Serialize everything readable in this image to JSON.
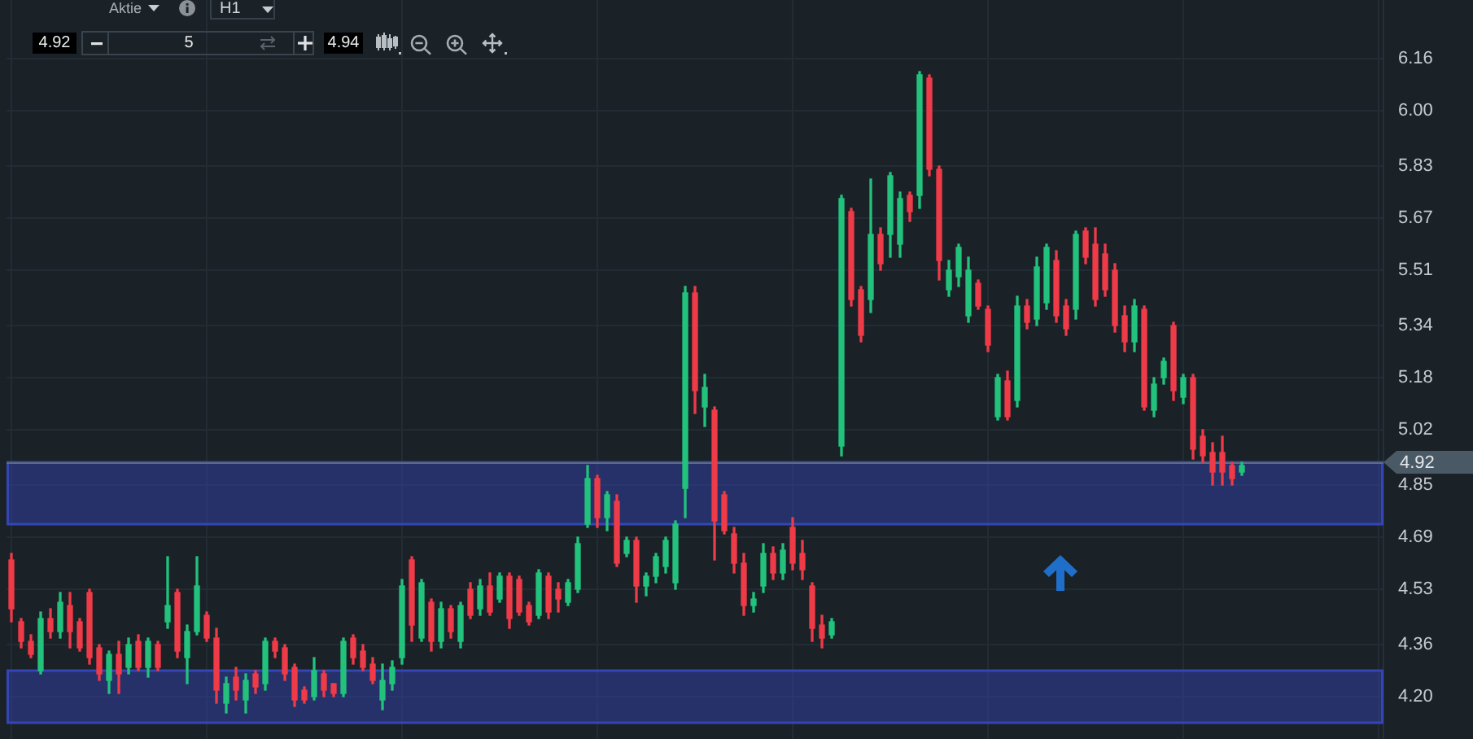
{
  "chart_data": {
    "type": "candlestick",
    "categories": [
      null,
      null,
      null,
      null,
      null,
      null,
      null,
      null,
      null,
      null,
      null,
      null,
      null,
      null,
      null,
      null,
      null,
      null,
      null,
      null,
      null,
      null,
      null,
      null,
      null,
      null,
      null,
      null,
      null,
      null,
      null,
      null,
      null,
      null,
      null,
      null,
      null,
      null,
      null,
      null,
      null,
      null,
      null,
      null,
      null,
      null,
      null,
      null,
      null,
      null,
      null,
      null,
      null,
      null,
      null,
      null,
      null,
      null,
      null,
      null,
      null,
      null,
      null,
      null,
      null,
      null,
      null,
      null,
      null,
      null,
      null,
      null,
      null,
      null,
      null,
      null,
      null,
      null,
      null,
      null,
      null,
      null,
      null,
      null,
      null,
      null,
      null,
      null,
      null,
      null,
      null,
      null,
      null,
      null,
      null,
      null,
      null,
      null,
      null,
      null,
      null,
      null,
      null,
      null,
      null,
      null,
      null,
      null,
      null,
      null,
      null,
      null,
      null,
      null,
      null,
      null,
      null,
      null,
      null,
      null,
      null,
      null,
      null,
      null,
      null,
      null,
      null,
      null,
      null,
      null,
      null,
      null,
      null,
      null,
      null,
      null,
      null,
      null,
      null,
      null,
      null
    ],
    "ohlc": [
      [
        4.62,
        4.64,
        4.43,
        4.47
      ],
      [
        4.43,
        4.44,
        4.35,
        4.37
      ],
      [
        4.37,
        4.39,
        4.32,
        4.33
      ],
      [
        4.28,
        4.46,
        4.27,
        4.44
      ],
      [
        4.44,
        4.47,
        4.38,
        4.4
      ],
      [
        4.4,
        4.52,
        4.38,
        4.49
      ],
      [
        4.48,
        4.52,
        4.35,
        4.4
      ],
      [
        4.43,
        4.44,
        4.34,
        4.35
      ],
      [
        4.52,
        4.53,
        4.3,
        4.32
      ],
      [
        4.35,
        4.36,
        4.25,
        4.27
      ],
      [
        4.25,
        4.34,
        4.21,
        4.33
      ],
      [
        4.33,
        4.37,
        4.21,
        4.27
      ],
      [
        4.29,
        4.38,
        4.27,
        4.36
      ],
      [
        4.37,
        4.39,
        4.28,
        4.29
      ],
      [
        4.29,
        4.38,
        4.26,
        4.37
      ],
      [
        4.36,
        4.37,
        4.28,
        4.29
      ],
      [
        4.43,
        4.63,
        4.41,
        4.48
      ],
      [
        4.52,
        4.53,
        4.32,
        4.34
      ],
      [
        4.32,
        4.42,
        4.24,
        4.4
      ],
      [
        4.4,
        4.63,
        4.39,
        4.54
      ],
      [
        4.45,
        4.46,
        4.37,
        4.38
      ],
      [
        4.38,
        4.41,
        4.18,
        4.22
      ],
      [
        4.18,
        4.26,
        4.15,
        4.24
      ],
      [
        4.26,
        4.29,
        4.19,
        4.22
      ],
      [
        4.19,
        4.27,
        4.15,
        4.25
      ],
      [
        4.27,
        4.28,
        4.21,
        4.23
      ],
      [
        4.24,
        4.38,
        4.22,
        4.37
      ],
      [
        4.37,
        4.38,
        4.32,
        4.34
      ],
      [
        4.35,
        4.36,
        4.25,
        4.27
      ],
      [
        4.29,
        4.3,
        4.17,
        4.19
      ],
      [
        4.22,
        4.23,
        4.18,
        4.19
      ],
      [
        4.2,
        4.32,
        4.19,
        4.28
      ],
      [
        4.27,
        4.28,
        4.2,
        4.22
      ],
      [
        4.24,
        4.24,
        4.2,
        4.21
      ],
      [
        4.21,
        4.38,
        4.2,
        4.37
      ],
      [
        4.38,
        4.39,
        4.3,
        4.32
      ],
      [
        4.34,
        4.36,
        4.28,
        4.29
      ],
      [
        4.3,
        4.32,
        4.24,
        4.25
      ],
      [
        4.19,
        4.3,
        4.16,
        4.25
      ],
      [
        4.24,
        4.31,
        4.22,
        4.29
      ],
      [
        4.32,
        4.56,
        4.3,
        4.54
      ],
      [
        4.62,
        4.63,
        4.37,
        4.42
      ],
      [
        4.38,
        4.56,
        4.37,
        4.55
      ],
      [
        4.49,
        4.5,
        4.34,
        4.37
      ],
      [
        4.37,
        4.49,
        4.35,
        4.47
      ],
      [
        4.47,
        4.48,
        4.38,
        4.4
      ],
      [
        4.37,
        4.49,
        4.35,
        4.48
      ],
      [
        4.53,
        4.55,
        4.44,
        4.45
      ],
      [
        4.47,
        4.56,
        4.45,
        4.54
      ],
      [
        4.54,
        4.58,
        4.45,
        4.46
      ],
      [
        4.5,
        4.58,
        4.49,
        4.57
      ],
      [
        4.57,
        4.58,
        4.41,
        4.44
      ],
      [
        4.56,
        4.57,
        4.45,
        4.46
      ],
      [
        4.48,
        4.49,
        4.42,
        4.43
      ],
      [
        4.45,
        4.59,
        4.44,
        4.58
      ],
      [
        4.57,
        4.58,
        4.44,
        4.46
      ],
      [
        4.53,
        4.55,
        4.46,
        4.5
      ],
      [
        4.49,
        4.56,
        4.48,
        4.55
      ],
      [
        4.53,
        4.69,
        4.52,
        4.67
      ],
      [
        4.73,
        4.91,
        4.72,
        4.87
      ],
      [
        4.87,
        4.88,
        4.72,
        4.75
      ],
      [
        4.75,
        4.83,
        4.71,
        4.82
      ],
      [
        4.8,
        4.82,
        4.6,
        4.61
      ],
      [
        4.64,
        4.69,
        4.63,
        4.68
      ],
      [
        4.68,
        4.69,
        4.49,
        4.54
      ],
      [
        4.54,
        4.58,
        4.51,
        4.57
      ],
      [
        4.57,
        4.64,
        4.55,
        4.63
      ],
      [
        4.6,
        4.69,
        4.58,
        4.68
      ],
      [
        4.55,
        4.74,
        4.53,
        4.73
      ],
      [
        4.84,
        5.46,
        4.75,
        5.44
      ],
      [
        5.44,
        5.46,
        5.07,
        5.14
      ],
      [
        5.09,
        5.19,
        5.03,
        5.15
      ],
      [
        5.08,
        5.09,
        4.62,
        4.74
      ],
      [
        4.82,
        4.83,
        4.7,
        4.71
      ],
      [
        4.7,
        4.72,
        4.58,
        4.61
      ],
      [
        4.61,
        4.64,
        4.45,
        4.48
      ],
      [
        4.48,
        4.52,
        4.46,
        4.5
      ],
      [
        4.54,
        4.67,
        4.52,
        4.64
      ],
      [
        4.64,
        4.66,
        4.56,
        4.58
      ],
      [
        4.58,
        4.67,
        4.56,
        4.65
      ],
      [
        4.72,
        4.75,
        4.59,
        4.61
      ],
      [
        4.64,
        4.68,
        4.56,
        4.59
      ],
      [
        4.54,
        4.55,
        4.37,
        4.41
      ],
      [
        4.42,
        4.45,
        4.35,
        4.38
      ],
      [
        4.39,
        4.44,
        4.38,
        4.43
      ],
      [
        4.97,
        5.74,
        4.94,
        5.73
      ],
      [
        5.69,
        5.7,
        5.4,
        5.42
      ],
      [
        5.45,
        5.46,
        5.29,
        5.31
      ],
      [
        5.42,
        5.79,
        5.38,
        5.62
      ],
      [
        5.62,
        5.64,
        5.51,
        5.53
      ],
      [
        5.62,
        5.81,
        5.55,
        5.8
      ],
      [
        5.59,
        5.75,
        5.55,
        5.73
      ],
      [
        5.74,
        5.75,
        5.66,
        5.69
      ],
      [
        5.74,
        6.12,
        5.7,
        6.11
      ],
      [
        6.1,
        6.11,
        5.8,
        5.82
      ],
      [
        5.82,
        5.83,
        5.48,
        5.54
      ],
      [
        5.45,
        5.54,
        5.43,
        5.51
      ],
      [
        5.49,
        5.59,
        5.46,
        5.58
      ],
      [
        5.37,
        5.55,
        5.35,
        5.51
      ],
      [
        5.47,
        5.48,
        5.39,
        5.4
      ],
      [
        5.39,
        5.4,
        5.26,
        5.28
      ],
      [
        5.06,
        5.19,
        5.05,
        5.18
      ],
      [
        5.17,
        5.2,
        5.05,
        5.06
      ],
      [
        5.11,
        5.43,
        5.09,
        5.4
      ],
      [
        5.4,
        5.42,
        5.33,
        5.35
      ],
      [
        5.36,
        5.55,
        5.34,
        5.52
      ],
      [
        5.41,
        5.59,
        5.39,
        5.58
      ],
      [
        5.54,
        5.57,
        5.35,
        5.37
      ],
      [
        5.4,
        5.42,
        5.31,
        5.33
      ],
      [
        5.39,
        5.63,
        5.36,
        5.62
      ],
      [
        5.63,
        5.64,
        5.53,
        5.55
      ],
      [
        5.59,
        5.64,
        5.4,
        5.42
      ],
      [
        5.56,
        5.59,
        5.43,
        5.45
      ],
      [
        5.51,
        5.53,
        5.32,
        5.34
      ],
      [
        5.37,
        5.4,
        5.26,
        5.29
      ],
      [
        5.29,
        5.42,
        5.26,
        5.4
      ],
      [
        5.39,
        5.4,
        5.08,
        5.09
      ],
      [
        5.08,
        5.18,
        5.06,
        5.16
      ],
      [
        5.18,
        5.24,
        5.16,
        5.23
      ],
      [
        5.34,
        5.35,
        5.11,
        5.14
      ],
      [
        5.12,
        5.19,
        5.1,
        5.18
      ],
      [
        5.18,
        5.19,
        4.93,
        4.96
      ],
      [
        5.0,
        5.02,
        4.92,
        4.94
      ],
      [
        4.95,
        4.98,
        4.85,
        4.89
      ],
      [
        4.95,
        5.0,
        4.85,
        4.89
      ],
      [
        4.91,
        4.92,
        4.85,
        4.87
      ],
      [
        4.89,
        4.92,
        4.88,
        4.91
      ],
      null,
      null,
      null,
      null,
      null,
      null,
      null,
      null,
      null,
      null,
      null,
      null,
      null,
      null
    ],
    "colors": [
      "#ef3a48",
      "#ef3a48",
      "#ef3a48",
      "#22c27d",
      "#ef3a48",
      "#22c27d",
      "#ef3a48",
      "#ef3a48",
      "#ef3a48",
      "#ef3a48",
      "#22c27d",
      "#ef3a48",
      "#22c27d",
      "#ef3a48",
      "#22c27d",
      "#ef3a48",
      "#22c27d",
      "#ef3a48",
      "#22c27d",
      "#22c27d",
      "#ef3a48",
      "#ef3a48",
      "#22c27d",
      "#ef3a48",
      "#22c27d",
      "#ef3a48",
      "#22c27d",
      "#ef3a48",
      "#ef3a48",
      "#ef3a48",
      "#ef3a48",
      "#22c27d",
      "#ef3a48",
      "#ef3a48",
      "#22c27d",
      "#ef3a48",
      "#ef3a48",
      "#ef3a48",
      "#22c27d",
      "#22c27d",
      "#22c27d",
      "#ef3a48",
      "#22c27d",
      "#ef3a48",
      "#22c27d",
      "#ef3a48",
      "#22c27d",
      "#ef3a48",
      "#22c27d",
      "#ef3a48",
      "#22c27d",
      "#ef3a48",
      "#ef3a48",
      "#ef3a48",
      "#22c27d",
      "#ef3a48",
      "#ef3a48",
      "#22c27d",
      "#22c27d",
      "#22c27d",
      "#ef3a48",
      "#22c27d",
      "#ef3a48",
      "#22c27d",
      "#ef3a48",
      "#22c27d",
      "#22c27d",
      "#22c27d",
      "#22c27d",
      "#22c27d",
      "#ef3a48",
      "#22c27d",
      "#ef3a48",
      "#ef3a48",
      "#ef3a48",
      "#ef3a48",
      "#22c27d",
      "#22c27d",
      "#ef3a48",
      "#22c27d",
      "#ef3a48",
      "#ef3a48",
      "#ef3a48",
      "#ef3a48",
      "#22c27d",
      "#22c27d",
      "#ef3a48",
      "#ef3a48",
      "#22c27d",
      "#ef3a48",
      "#22c27d",
      "#22c27d",
      "#ef3a48",
      "#22c27d",
      "#ef3a48",
      "#ef3a48",
      "#22c27d",
      "#22c27d",
      "#22c27d",
      "#ef3a48",
      "#ef3a48",
      "#22c27d",
      "#ef3a48",
      "#22c27d",
      "#ef3a48",
      "#22c27d",
      "#22c27d",
      "#ef3a48",
      "#ef3a48",
      "#22c27d",
      "#ef3a48",
      "#ef3a48",
      "#ef3a48",
      "#ef3a48",
      "#ef3a48",
      "#22c27d",
      "#ef3a48",
      "#22c27d",
      "#22c27d",
      "#ef3a48",
      "#22c27d",
      "#ef3a48",
      "#ef3a48",
      "#ef3a48",
      "#ef3a48",
      "#ef3a48",
      "#22c27d",
      null,
      null,
      null,
      null,
      null,
      null,
      null,
      null,
      null,
      null,
      null,
      null,
      null,
      null
    ],
    "ylim": [
      4.07,
      6.34
    ],
    "yticks": [
      {
        "value": 4.2,
        "label": "4.20"
      },
      4.36,
      4.53,
      4.69,
      4.85,
      5.02,
      5.18,
      5.34,
      5.51,
      5.67,
      5.83,
      {
        "value": 6.0,
        "label": "6.00"
      },
      6.16
    ],
    "tick_labels": "y",
    "grid": true,
    "bands": [
      {
        "axis": "y",
        "from": 4.73,
        "to": 4.92,
        "color": "#3445b5"
      },
      {
        "axis": "y",
        "from": 4.12,
        "to": 4.28,
        "color": "#3445b5"
      }
    ],
    "ref_lines": [
      {
        "axis": "y",
        "value": 4.92,
        "label": "4.92",
        "color": "#5f6c78"
      }
    ],
    "annotations": [
      "Aktie",
      "H1",
      "4.92",
      "5",
      "4.94"
    ]
  }
}
